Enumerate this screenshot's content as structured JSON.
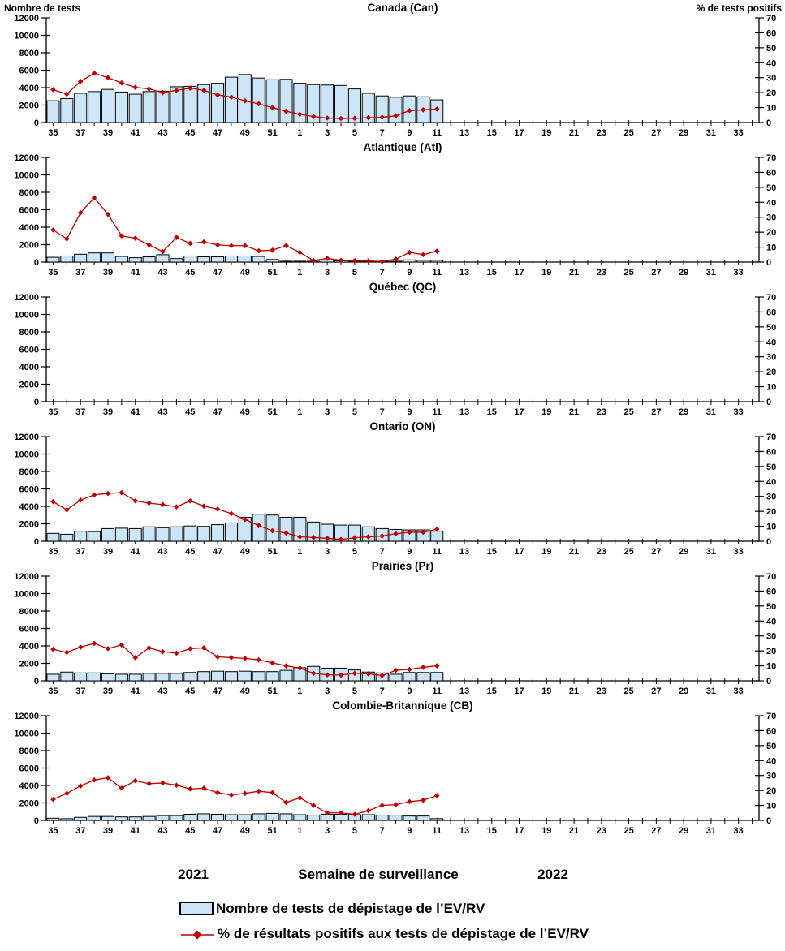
{
  "page": {
    "left_axis_label": "Nombre de tests",
    "right_axis_label": "% de tests positifs",
    "x_axis_title": "Semaine de surveillance",
    "year_left": "2021",
    "year_right": "2022",
    "legend": {
      "bar_label": "Nombre de tests de dépistage de l’EV/RV",
      "line_label": "% de résultats positifs aux tests de dépistage de l’EV/RV"
    },
    "colors": {
      "bar_fill": "#CDE6F7",
      "bar_border": "#000000",
      "line": "#C00000",
      "text": "#000000"
    }
  },
  "chart_data": {
    "type": "bar+line",
    "layout": "6 stacked panels sharing identical axes, legend bottom-center, no gridlines",
    "x_axis": {
      "label": "Semaine de surveillance",
      "weeks_order": "2021 weeks 35-52 followed by 2022 weeks 1-34",
      "slots": 52,
      "tick_labels": [
        "35",
        "37",
        "39",
        "41",
        "43",
        "45",
        "47",
        "49",
        "51",
        "1",
        "3",
        "5",
        "7",
        "9",
        "11",
        "13",
        "15",
        "17",
        "19",
        "21",
        "23",
        "25",
        "27",
        "29",
        "31",
        "33"
      ],
      "data_weeks": [
        35,
        36,
        37,
        38,
        39,
        40,
        41,
        42,
        43,
        44,
        45,
        46,
        47,
        48,
        49,
        50,
        51,
        52,
        1,
        2,
        3,
        4,
        5,
        6,
        7,
        8,
        9,
        10,
        11
      ]
    },
    "left_axis": {
      "label": "Nombre de tests",
      "min": 0,
      "max": 12000,
      "step": 2000
    },
    "right_axis": {
      "label": "% de tests positifs",
      "min": 0,
      "max": 70,
      "step": 10
    },
    "panels": [
      {
        "id": "canada",
        "title": "Canada (Can)",
        "tests": [
          2500,
          2750,
          3350,
          3550,
          3800,
          3500,
          3250,
          3550,
          3600,
          4100,
          4150,
          4350,
          4500,
          5200,
          5500,
          5100,
          4900,
          4950,
          4500,
          4350,
          4300,
          4250,
          3850,
          3350,
          3050,
          2900,
          3050,
          2950,
          2600
        ],
        "pct_positifs": [
          22,
          19,
          27.5,
          33,
          30,
          26.5,
          23.5,
          22.5,
          20,
          21.5,
          23,
          21.5,
          18.5,
          17,
          14.5,
          12.5,
          10,
          7.5,
          5.5,
          4,
          3,
          2.7,
          2.8,
          3.2,
          3.5,
          4.5,
          8,
          8.5,
          9
        ]
      },
      {
        "id": "atlantique",
        "title": "Atlantique (Atl)",
        "tests": [
          550,
          700,
          900,
          1050,
          1050,
          650,
          500,
          600,
          850,
          400,
          700,
          600,
          600,
          700,
          700,
          650,
          300,
          100,
          100,
          100,
          250,
          150,
          100,
          100,
          100,
          100,
          250,
          200,
          200
        ],
        "pct_positifs": [
          21.5,
          15.5,
          33,
          43,
          32,
          17.5,
          16,
          11.5,
          7,
          16.5,
          12.5,
          13.5,
          11.5,
          11,
          11,
          7.5,
          8,
          11,
          6.5,
          1,
          2.5,
          1.2,
          1,
          0.8,
          0.3,
          2,
          6.5,
          5,
          7.3
        ]
      },
      {
        "id": "quebec",
        "title": "Québec (QC)",
        "tests": [],
        "pct_positifs": []
      },
      {
        "id": "ontario",
        "title": "Ontario (ON)",
        "tests": [
          900,
          800,
          1150,
          1100,
          1450,
          1500,
          1450,
          1650,
          1550,
          1650,
          1750,
          1700,
          1900,
          2100,
          2750,
          3100,
          3000,
          2750,
          2750,
          2200,
          1950,
          1850,
          1850,
          1650,
          1450,
          1350,
          1300,
          1300,
          1150
        ],
        "pct_positifs": [
          26.5,
          21,
          27.5,
          31,
          32,
          32.5,
          27,
          25.5,
          24.5,
          23,
          27,
          23.5,
          21.5,
          18.5,
          14.5,
          10.5,
          7,
          5.5,
          3,
          2.5,
          2,
          1.2,
          2.3,
          3,
          3.5,
          5,
          6,
          6,
          8
        ]
      },
      {
        "id": "prairies",
        "title": "Prairies (Pr)",
        "tests": [
          750,
          1000,
          900,
          900,
          800,
          750,
          750,
          850,
          850,
          850,
          950,
          1050,
          1100,
          1050,
          1100,
          1050,
          1050,
          1200,
          1500,
          1650,
          1450,
          1450,
          1250,
          1000,
          900,
          750,
          950,
          950,
          950
        ],
        "pct_positifs": [
          21,
          19,
          22.5,
          25,
          21.5,
          24,
          15.5,
          22,
          19.5,
          18.5,
          21.5,
          22,
          16,
          15.5,
          15,
          14,
          12,
          10,
          8.5,
          5,
          4,
          3.8,
          5,
          4.7,
          3.5,
          7,
          7.6,
          9,
          10
        ]
      },
      {
        "id": "colombie-britannique",
        "title": "Colombie-Britannique (CB)",
        "tests": [
          250,
          200,
          350,
          450,
          450,
          400,
          400,
          450,
          550,
          550,
          700,
          750,
          700,
          650,
          650,
          750,
          800,
          750,
          650,
          600,
          700,
          700,
          650,
          650,
          600,
          600,
          500,
          500,
          200
        ],
        "pct_positifs": [
          14,
          18,
          23,
          27,
          28.5,
          21.5,
          26.5,
          24.5,
          25,
          23.5,
          21,
          21.5,
          18.5,
          17,
          18,
          19.5,
          18.5,
          12,
          15,
          10,
          5,
          5,
          4,
          6.5,
          10,
          10.5,
          12.5,
          13.5,
          16.5
        ]
      }
    ]
  }
}
